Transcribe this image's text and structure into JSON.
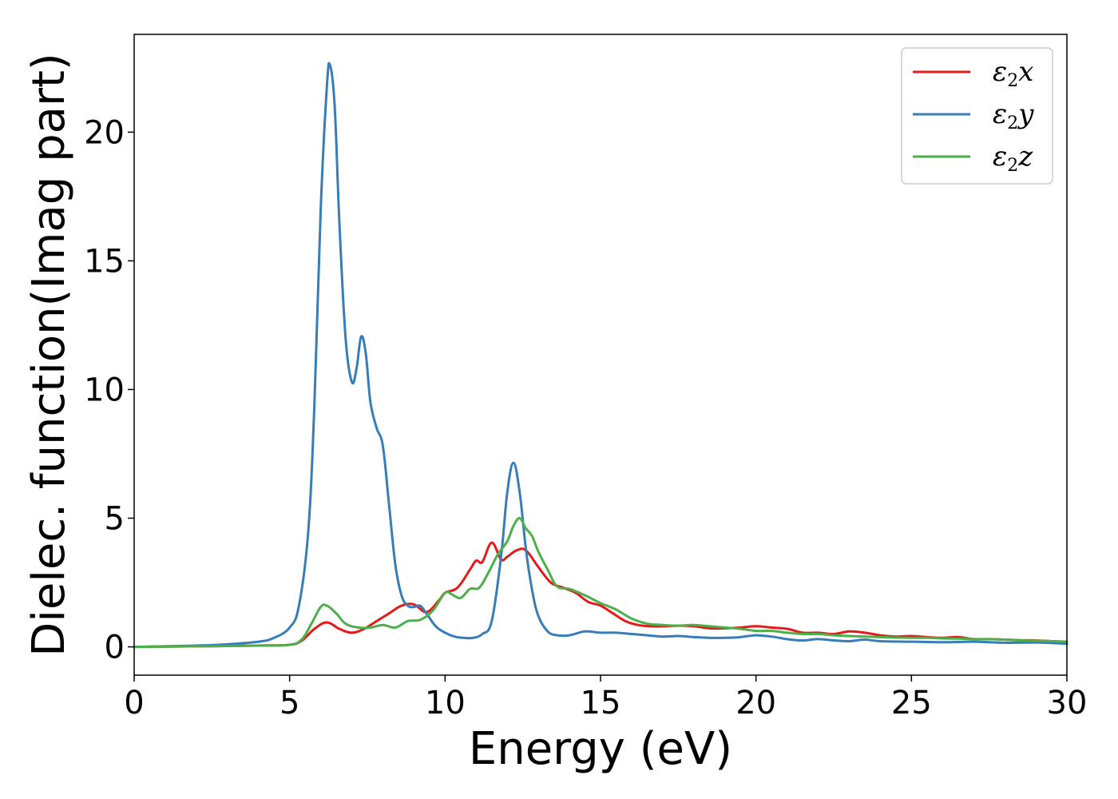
{
  "chart_data": {
    "type": "line",
    "title": "",
    "xlabel": "Energy (eV)",
    "ylabel": "Dielec. function(Imag part)",
    "xlim": [
      0,
      30
    ],
    "ylim": [
      -1.1,
      23.8
    ],
    "xticks": [
      0,
      5,
      10,
      15,
      20,
      25,
      30
    ],
    "xtick_labels": [
      "0",
      "5",
      "10",
      "15",
      "20",
      "25",
      "30"
    ],
    "yticks": [
      0,
      5,
      10,
      15,
      20
    ],
    "ytick_labels": [
      "0",
      "5",
      "10",
      "15",
      "20"
    ],
    "grid": false,
    "legend_position": "top-right",
    "series": [
      {
        "name": "ε2x",
        "legend_main": "ε",
        "legend_sub": "2",
        "legend_var": "x",
        "color": "#e41a1c",
        "x": [
          0,
          2,
          4,
          5,
          5.4,
          5.8,
          6.2,
          6.6,
          7.0,
          7.4,
          7.8,
          8.2,
          8.6,
          9.0,
          9.4,
          9.8,
          10.0,
          10.4,
          10.8,
          11.0,
          11.2,
          11.5,
          11.8,
          12.0,
          12.3,
          12.6,
          13.0,
          13.4,
          13.8,
          14.2,
          14.6,
          15.0,
          15.4,
          15.8,
          16.2,
          16.6,
          17.0,
          17.5,
          18.0,
          18.5,
          19.0,
          19.5,
          20.0,
          20.5,
          21.0,
          21.5,
          22.0,
          22.5,
          23.0,
          23.5,
          24.0,
          24.5,
          25.0,
          25.5,
          26.0,
          26.5,
          27.0,
          27.5,
          28.0,
          28.5,
          29.0,
          29.5,
          30.0
        ],
        "values": [
          0,
          0.02,
          0.05,
          0.08,
          0.25,
          0.7,
          0.95,
          0.7,
          0.55,
          0.7,
          1.0,
          1.3,
          1.6,
          1.65,
          1.35,
          1.8,
          2.1,
          2.3,
          3.0,
          3.35,
          3.3,
          4.05,
          3.4,
          3.5,
          3.75,
          3.75,
          3.1,
          2.5,
          2.3,
          2.1,
          1.75,
          1.6,
          1.3,
          1.0,
          0.85,
          0.8,
          0.8,
          0.82,
          0.8,
          0.72,
          0.72,
          0.75,
          0.8,
          0.75,
          0.7,
          0.55,
          0.55,
          0.5,
          0.6,
          0.55,
          0.45,
          0.4,
          0.42,
          0.38,
          0.35,
          0.38,
          0.3,
          0.3,
          0.28,
          0.26,
          0.25,
          0.22,
          0.2
        ]
      },
      {
        "name": "ε2y",
        "legend_main": "ε",
        "legend_sub": "2",
        "legend_var": "y",
        "color": "#377eb8",
        "x": [
          0,
          2,
          3,
          4,
          4.5,
          5.0,
          5.3,
          5.6,
          5.8,
          6.0,
          6.2,
          6.3,
          6.45,
          6.6,
          6.8,
          7.0,
          7.15,
          7.3,
          7.45,
          7.6,
          7.8,
          8.0,
          8.2,
          8.4,
          8.6,
          8.8,
          9.0,
          9.2,
          9.4,
          9.7,
          10.0,
          10.3,
          10.6,
          10.9,
          11.2,
          11.5,
          11.8,
          12.0,
          12.2,
          12.4,
          12.6,
          12.8,
          13.0,
          13.3,
          13.6,
          14.0,
          14.5,
          15.0,
          15.5,
          16.0,
          16.5,
          17.0,
          17.5,
          18.0,
          18.5,
          19.0,
          19.5,
          20.0,
          20.5,
          21.0,
          21.5,
          22.0,
          22.5,
          23.0,
          23.5,
          24.0,
          25.0,
          26.0,
          27.0,
          28.0,
          29.0,
          29.5,
          30.0
        ],
        "values": [
          0,
          0.05,
          0.1,
          0.2,
          0.35,
          0.75,
          1.6,
          4.5,
          9.5,
          17.0,
          21.8,
          22.6,
          21.0,
          16.5,
          12.0,
          10.3,
          10.8,
          12.05,
          11.4,
          9.5,
          8.5,
          7.8,
          5.5,
          3.2,
          2.0,
          1.6,
          1.55,
          1.6,
          1.3,
          0.8,
          0.55,
          0.4,
          0.35,
          0.35,
          0.5,
          1.0,
          3.5,
          6.0,
          7.15,
          6.0,
          3.8,
          2.2,
          1.2,
          0.6,
          0.45,
          0.45,
          0.6,
          0.55,
          0.55,
          0.5,
          0.45,
          0.4,
          0.42,
          0.38,
          0.35,
          0.35,
          0.38,
          0.45,
          0.4,
          0.3,
          0.25,
          0.3,
          0.25,
          0.22,
          0.28,
          0.22,
          0.2,
          0.18,
          0.2,
          0.16,
          0.17,
          0.15,
          0.12
        ]
      },
      {
        "name": "ε2z",
        "legend_main": "ε",
        "legend_sub": "2",
        "legend_var": "z",
        "color": "#4daf4a",
        "x": [
          0,
          2,
          4,
          5.0,
          5.4,
          5.7,
          6.0,
          6.2,
          6.5,
          6.8,
          7.2,
          7.6,
          8.0,
          8.4,
          8.8,
          9.2,
          9.6,
          10.0,
          10.2,
          10.5,
          10.8,
          11.1,
          11.4,
          11.7,
          12.0,
          12.2,
          12.4,
          12.6,
          12.8,
          13.0,
          13.3,
          13.6,
          14.0,
          14.5,
          15.0,
          15.5,
          16.0,
          16.5,
          17.0,
          17.5,
          18.0,
          18.5,
          19.0,
          19.5,
          20.0,
          20.5,
          21.0,
          21.5,
          22.0,
          22.5,
          23.0,
          23.5,
          24.0,
          24.5,
          25.0,
          25.5,
          26.0,
          26.5,
          27.0,
          27.5,
          28.0,
          28.5,
          29.0,
          29.5,
          30.0
        ],
        "values": [
          0,
          0.02,
          0.05,
          0.08,
          0.3,
          0.9,
          1.55,
          1.6,
          1.3,
          0.9,
          0.75,
          0.75,
          0.85,
          0.75,
          1.0,
          1.05,
          1.4,
          2.1,
          2.05,
          1.9,
          2.25,
          2.3,
          2.9,
          3.6,
          4.1,
          4.7,
          5.0,
          4.6,
          4.3,
          3.7,
          3.0,
          2.35,
          2.25,
          2.0,
          1.7,
          1.45,
          1.1,
          0.9,
          0.85,
          0.82,
          0.85,
          0.8,
          0.75,
          0.7,
          0.62,
          0.62,
          0.55,
          0.5,
          0.5,
          0.45,
          0.42,
          0.4,
          0.38,
          0.36,
          0.35,
          0.35,
          0.33,
          0.32,
          0.3,
          0.3,
          0.28,
          0.25,
          0.24,
          0.22,
          0.2
        ]
      }
    ]
  }
}
